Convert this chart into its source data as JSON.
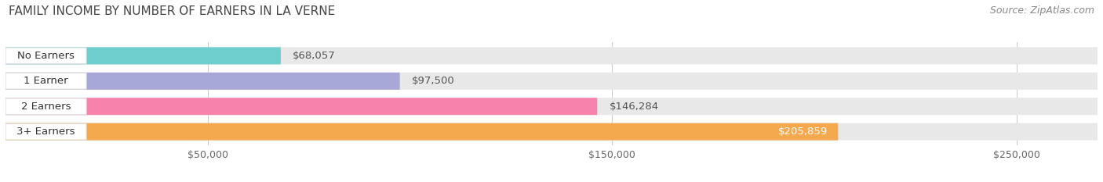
{
  "title": "FAMILY INCOME BY NUMBER OF EARNERS IN LA VERNE",
  "source": "Source: ZipAtlas.com",
  "categories": [
    "No Earners",
    "1 Earner",
    "2 Earners",
    "3+ Earners"
  ],
  "values": [
    68057,
    97500,
    146284,
    205859
  ],
  "bar_colors": [
    "#6ecece",
    "#a8a8d8",
    "#f783ac",
    "#f5a94e"
  ],
  "value_labels": [
    "$68,057",
    "$97,500",
    "$146,284",
    "$205,859"
  ],
  "value_inside": [
    false,
    false,
    false,
    true
  ],
  "x_ticks": [
    50000,
    150000,
    250000
  ],
  "x_tick_labels": [
    "$50,000",
    "$150,000",
    "$250,000"
  ],
  "xlim": [
    0,
    270000
  ],
  "background_color": "#ffffff",
  "bar_background_color": "#e8e8e8",
  "title_fontsize": 11,
  "source_fontsize": 9,
  "label_fontsize": 9.5,
  "value_fontsize": 9.5,
  "bar_height": 0.68,
  "bar_gap": 0.08
}
